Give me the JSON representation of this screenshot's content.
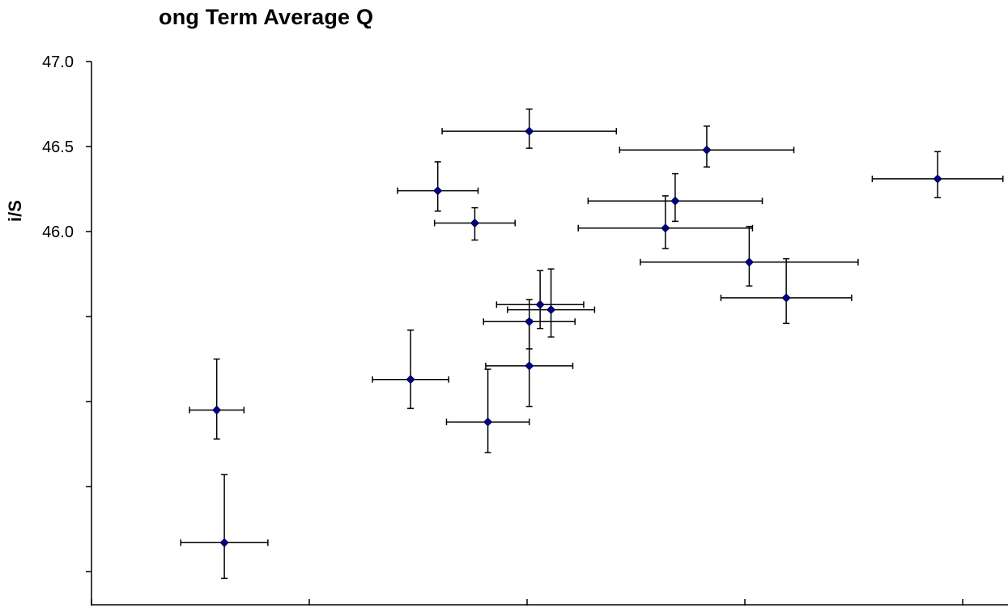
{
  "chart_data": {
    "type": "scatter",
    "title": " ong Term Average Qı",
    "title_visible": "ong Term Average Q",
    "ylabel_fragment": "i/S",
    "ylim": [
      43.8,
      47.0
    ],
    "y_ticks": [
      {
        "value": 47.0,
        "label": "47.0"
      },
      {
        "value": 46.5,
        "label": "46.5"
      },
      {
        "value": 46.0,
        "label": "46.0"
      },
      {
        "value": 45.5,
        "label": ""
      },
      {
        "value": 45.0,
        "label": ""
      },
      {
        "value": 44.5,
        "label": ""
      },
      {
        "value": 44.0,
        "label": ""
      }
    ],
    "xlim": [
      0,
      1
    ],
    "x_ticks": [
      0.0,
      0.2,
      0.4,
      0.6,
      0.8
    ],
    "marker_color": "#00008b",
    "errorbar_color": "#000000",
    "grid": false,
    "legend": "none",
    "points": [
      {
        "x": 0.115,
        "y": 44.95,
        "xerr": [
          0.025,
          0.025
        ],
        "yerr": [
          0.3,
          0.17
        ]
      },
      {
        "x": 0.122,
        "y": 44.17,
        "xerr": [
          0.04,
          0.04
        ],
        "yerr": [
          0.4,
          0.21
        ]
      },
      {
        "x": 0.293,
        "y": 45.13,
        "xerr": [
          0.035,
          0.035
        ],
        "yerr": [
          0.29,
          0.17
        ]
      },
      {
        "x": 0.318,
        "y": 46.24,
        "xerr": [
          0.037,
          0.037
        ],
        "yerr": [
          0.17,
          0.12
        ]
      },
      {
        "x": 0.352,
        "y": 46.05,
        "xerr": [
          0.037,
          0.037
        ],
        "yerr": [
          0.09,
          0.1
        ]
      },
      {
        "x": 0.364,
        "y": 44.88,
        "xerr": [
          0.038,
          0.038
        ],
        "yerr": [
          0.31,
          0.18
        ]
      },
      {
        "x": 0.402,
        "y": 46.59,
        "xerr": [
          0.08,
          0.08
        ],
        "yerr": [
          0.13,
          0.1
        ]
      },
      {
        "x": 0.402,
        "y": 45.47,
        "xerr": [
          0.042,
          0.042
        ],
        "yerr": [
          0.13,
          0.16
        ]
      },
      {
        "x": 0.402,
        "y": 45.21,
        "xerr": [
          0.04,
          0.04
        ],
        "yerr": [
          0.27,
          0.24
        ]
      },
      {
        "x": 0.412,
        "y": 45.57,
        "xerr": [
          0.04,
          0.04
        ],
        "yerr": [
          0.2,
          0.14
        ]
      },
      {
        "x": 0.422,
        "y": 45.54,
        "xerr": [
          0.04,
          0.04
        ],
        "yerr": [
          0.24,
          0.16
        ]
      },
      {
        "x": 0.565,
        "y": 46.48,
        "xerr": [
          0.08,
          0.08
        ],
        "yerr": [
          0.14,
          0.1
        ]
      },
      {
        "x": 0.527,
        "y": 46.02,
        "xerr": [
          0.08,
          0.08
        ],
        "yerr": [
          0.19,
          0.12
        ]
      },
      {
        "x": 0.536,
        "y": 46.18,
        "xerr": [
          0.08,
          0.08
        ],
        "yerr": [
          0.16,
          0.12
        ]
      },
      {
        "x": 0.604,
        "y": 45.82,
        "xerr": [
          0.1,
          0.1
        ],
        "yerr": [
          0.21,
          0.14
        ]
      },
      {
        "x": 0.638,
        "y": 45.61,
        "xerr": [
          0.06,
          0.06
        ],
        "yerr": [
          0.23,
          0.15
        ]
      },
      {
        "x": 0.777,
        "y": 46.31,
        "xerr": [
          0.06,
          0.06
        ],
        "yerr": [
          0.16,
          0.11
        ]
      }
    ]
  }
}
